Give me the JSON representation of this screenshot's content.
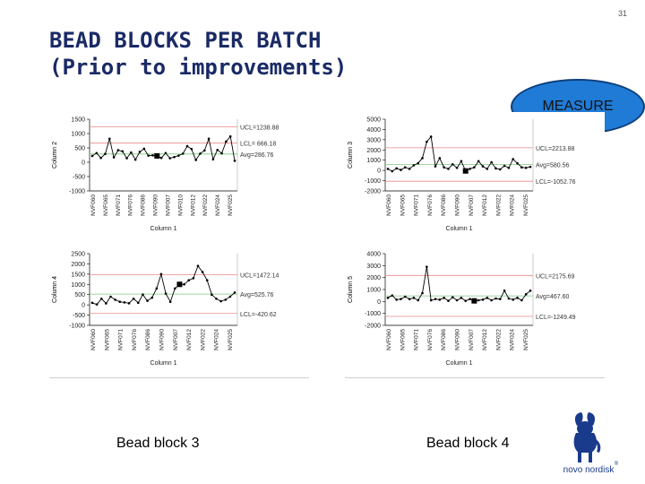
{
  "page_number": "31",
  "title": {
    "line1": "BEAD BLOCKS PER BATCH",
    "line2": "(Prior to improvements)"
  },
  "badge": "MEASURE",
  "captions": {
    "left": "Bead block 3",
    "right": "Bead block 4"
  },
  "logo": {
    "text": "novo nordisk",
    "mark": "®"
  },
  "colors": {
    "title": "#1a2a66",
    "badge_fill": "#1f7bd6",
    "ucl_line": "#e88a8a",
    "avg_line": "#7fc97f",
    "series": "#000000"
  },
  "chart_data": [
    {
      "type": "line",
      "ylabel": "Column 2",
      "xlabel": "Column 1",
      "ylim": [
        -1000,
        1500
      ],
      "yticks": [
        "1500",
        "1000",
        "500",
        "0",
        "-500",
        "-1000"
      ],
      "ytick_values": [
        1500,
        1000,
        500,
        0,
        -500,
        -1000
      ],
      "x_tick_labels": [
        "NVF060",
        "NVF065",
        "NVF071",
        "NVF076",
        "NVF086",
        "NVF090",
        "NVF007",
        "NVF010",
        "NVF012",
        "NVF022",
        "NVF024",
        "NVF025"
      ],
      "series": [
        {
          "values": [
            220,
            320,
            150,
            290,
            820,
            170,
            420,
            380,
            140,
            340,
            90,
            360,
            470,
            230,
            240,
            220,
            150,
            320,
            140,
            180,
            230,
            300,
            560,
            460,
            80,
            300,
            410,
            820,
            100,
            430,
            310,
            720,
            900,
            50
          ]
        }
      ],
      "ucl": {
        "value": 1238.88,
        "label": "UCL=1238.88"
      },
      "avg": {
        "value": 286.76,
        "label": "Avg=286.76"
      },
      "lcl": {
        "value": 666.18,
        "label": "LCL= 666.18"
      },
      "highlight_indices": [
        15
      ]
    },
    {
      "type": "line",
      "ylabel": "Column 3",
      "xlabel": "Column 1",
      "ylim": [
        -2000,
        5000
      ],
      "yticks": [
        "5000",
        "4000",
        "3000",
        "2000",
        "1000",
        "0",
        "-1000",
        "-2000"
      ],
      "ytick_values": [
        5000,
        4000,
        3000,
        2000,
        1000,
        0,
        -1000,
        -2000
      ],
      "x_tick_labels": [
        "NVF060",
        "NVF065",
        "NVF071",
        "NVF076",
        "NVF086",
        "NVF090",
        "NVF007",
        "NVF012",
        "NVF022",
        "NVF024",
        "NVF025"
      ],
      "series": [
        {
          "values": [
            150,
            -80,
            200,
            50,
            300,
            150,
            500,
            700,
            1200,
            2800,
            3300,
            400,
            1200,
            300,
            150,
            600,
            250,
            900,
            -50,
            150,
            300,
            900,
            400,
            150,
            800,
            200,
            100,
            450,
            250,
            1100,
            700,
            300,
            250,
            350
          ]
        }
      ],
      "ucl": {
        "value": 2213.88,
        "label": "UCL=2213.88"
      },
      "avg": {
        "value": 580.56,
        "label": "Avg=580.56"
      },
      "lcl": {
        "value": -1052.76,
        "label": "LCL=-1052.76"
      },
      "highlight_indices": [
        18
      ]
    },
    {
      "type": "line",
      "ylabel": "Column 4",
      "xlabel": "Column 1",
      "ylim": [
        -1000,
        2500
      ],
      "yticks": [
        "2500",
        "2000",
        "1500",
        "1000",
        "500",
        "0",
        "-500",
        "-1000"
      ],
      "ytick_values": [
        2500,
        2000,
        1500,
        1000,
        500,
        0,
        -500,
        -1000
      ],
      "x_tick_labels": [
        "NVF060",
        "NVF065",
        "NVF071",
        "NVF076",
        "NVF086",
        "NVF090",
        "NVF007",
        "NVF012",
        "NVF022",
        "NVF024",
        "NVF025"
      ],
      "series": [
        {
          "values": [
            100,
            20,
            300,
            70,
            400,
            250,
            150,
            120,
            80,
            300,
            100,
            500,
            200,
            350,
            800,
            1500,
            550,
            150,
            800,
            1000,
            1000,
            1200,
            1300,
            1900,
            1600,
            1200,
            500,
            300,
            180,
            250,
            400,
            600
          ]
        }
      ],
      "ucl": {
        "value": 1472.14,
        "label": "UCL=1472.14"
      },
      "avg": {
        "value": 525.76,
        "label": "Avg=525.76"
      },
      "lcl": {
        "value": -420.62,
        "label": "LCL=-420.62"
      },
      "highlight_indices": [
        19
      ]
    },
    {
      "type": "line",
      "ylabel": "Column 5",
      "xlabel": "Column 1",
      "ylim": [
        -2000,
        4000
      ],
      "yticks": [
        "4000",
        "3000",
        "2000",
        "1000",
        "0",
        "-1000",
        "-2000"
      ],
      "ytick_values": [
        4000,
        3000,
        2000,
        1000,
        0,
        -1000,
        -2000
      ],
      "x_tick_labels": [
        "NVF060",
        "NVF065",
        "NVF071",
        "NVF076",
        "NVF086",
        "NVF090",
        "NVF007",
        "NVF012",
        "NVF022",
        "NVF024",
        "NVF025"
      ],
      "series": [
        {
          "values": [
            300,
            500,
            150,
            200,
            400,
            200,
            300,
            100,
            700,
            2900,
            100,
            200,
            150,
            300,
            50,
            350,
            100,
            300,
            50,
            200,
            50,
            100,
            150,
            300,
            100,
            250,
            200,
            900,
            250,
            150,
            300,
            100,
            600,
            900
          ]
        }
      ],
      "ucl": {
        "value": 2175.69,
        "label": "UCL=2175.69"
      },
      "avg": {
        "value": 467.6,
        "label": "Avg=467.60"
      },
      "lcl": {
        "value": -1249.49,
        "label": "LCL=-1249.49"
      },
      "highlight_indices": [
        20
      ]
    }
  ]
}
